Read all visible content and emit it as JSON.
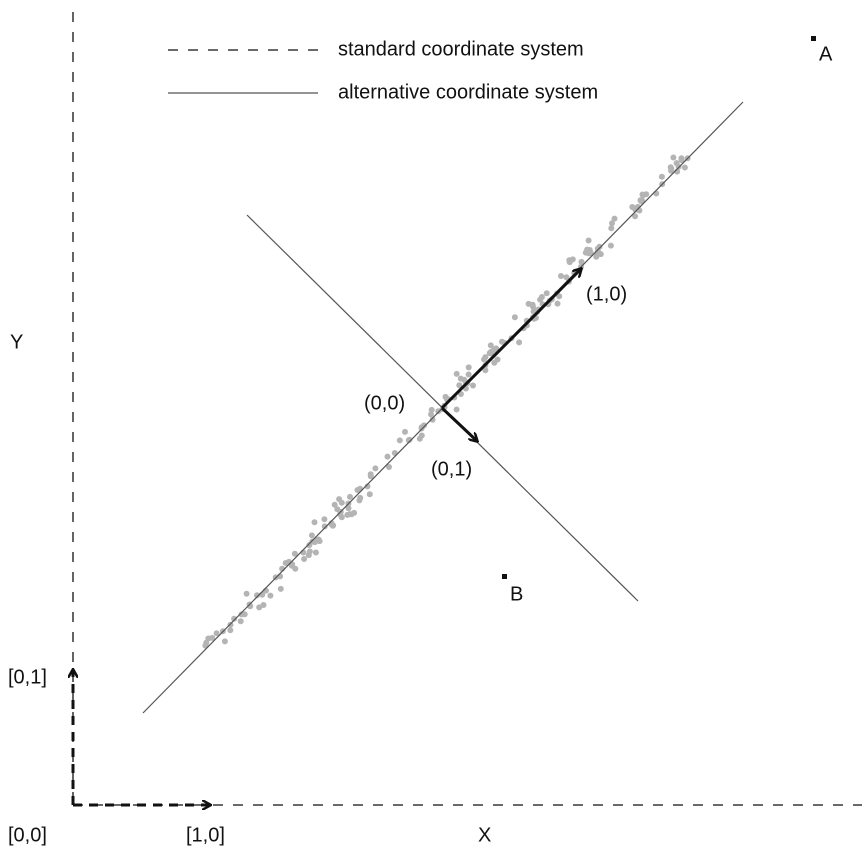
{
  "legend": {
    "standard": "standard coordinate system",
    "alternative": "alternative coordinate system"
  },
  "points": {
    "a": "A",
    "b": "B"
  },
  "alternative_axes": {
    "origin": "(0,0)",
    "unit_x": "(1,0)",
    "unit_y": "(0,1)"
  },
  "standard_axes": {
    "y_label": "Y",
    "x_label": "X",
    "origin": "[0,0]",
    "unit_x": "[1,0]",
    "unit_y": "[0,1]"
  }
}
